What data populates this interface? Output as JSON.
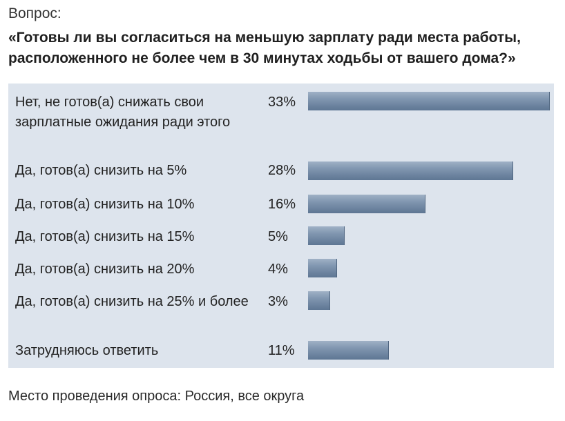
{
  "question_label": "Вопрос:",
  "question_text": "«Готовы ли вы согласиться на меньшую зарплату ради места работы, расположенного не более чем в 30 минутах ходьбы от вашего дома?»",
  "footer": "Место проведения опроса: Россия, все округа",
  "colors": {
    "panel_background": "#dde4ed",
    "bar": "#7f95af"
  },
  "chart_data": {
    "type": "bar",
    "orientation": "horizontal",
    "categories": [
      "Нет, не готов(а) снижать свои зарплатные ожидания ради этого",
      "Да, готов(а) снизить на 5%",
      "Да, готов(а) снизить на 10%",
      "Да, готов(а) снизить на 15%",
      "Да, готов(а) снизить на 20%",
      "Да, готов(а) снизить на 25% и более",
      "Затрудняюсь ответить"
    ],
    "values": [
      33,
      28,
      16,
      5,
      4,
      3,
      11
    ],
    "value_labels": [
      "33%",
      "28%",
      "16%",
      "5%",
      "4%",
      "3%",
      "11%"
    ],
    "unit": "%",
    "xlim": [
      0,
      33
    ],
    "grid": false,
    "legend": "none"
  }
}
